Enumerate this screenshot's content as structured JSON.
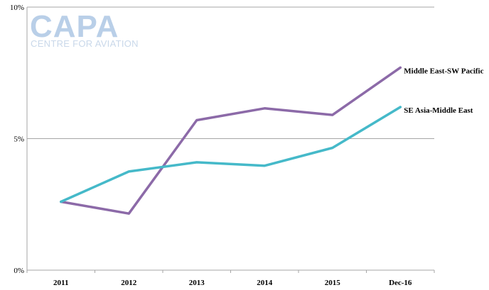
{
  "logo": {
    "main": "CAPA",
    "sub": "CENTRE FOR AVIATION"
  },
  "chart_data": {
    "type": "line",
    "title": "",
    "xlabel": "",
    "ylabel": "",
    "categories": [
      "2011",
      "2012",
      "2013",
      "2014",
      "2015",
      "Dec-16"
    ],
    "ylim": [
      0,
      10
    ],
    "yticks": [
      0,
      5,
      10
    ],
    "ytick_labels": [
      "0%",
      "5%",
      "10%"
    ],
    "grid": "horizontal",
    "series": [
      {
        "name": "Middle East-SW Pacific",
        "color": "#8c6aa8",
        "values": [
          2.6,
          2.15,
          5.7,
          6.15,
          5.9,
          7.7
        ]
      },
      {
        "name": "SE Asia-Middle East",
        "color": "#45b9c9",
        "values": [
          2.6,
          3.75,
          4.1,
          3.97,
          4.65,
          6.2
        ]
      }
    ]
  }
}
